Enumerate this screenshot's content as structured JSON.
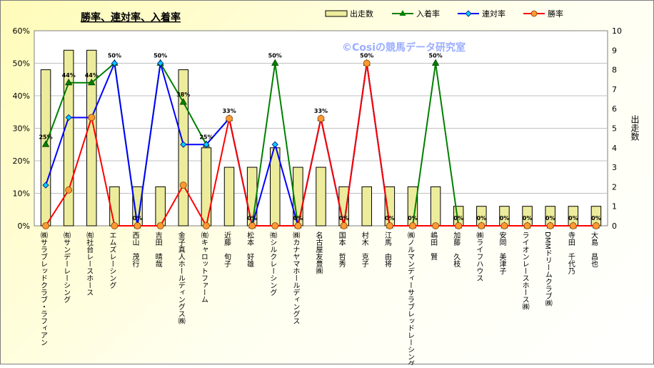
{
  "chart_data": {
    "type": "bar",
    "title": "勝率、連対率、入着率",
    "watermark": "©Cosiの競馬データ研究室",
    "ylabel_right": "出走数",
    "y_left_ticks": [
      "0%",
      "10%",
      "20%",
      "30%",
      "40%",
      "50%",
      "60%"
    ],
    "y_left_range": [
      0,
      60
    ],
    "y_right_ticks": [
      "0",
      "1",
      "2",
      "3",
      "4",
      "5",
      "6",
      "7",
      "8",
      "9",
      "10"
    ],
    "y_right_range": [
      0,
      10
    ],
    "legend_placement": "top",
    "categories": [
      "㈱サラブレッドクラブ・ラフィアン",
      "㈲サンデーレーシング",
      "㈲社台レースホース",
      "エムズレーシング",
      "西山　茂行",
      "吉田　晴哉",
      "金子真人ホールディングス㈱",
      "㈲キャロットファーム",
      "近藤　旬子",
      "松本　好雄",
      "㈲シルクレーシング",
      "㈱カナヤマホールディングス",
      "名古屋友豊㈱",
      "国本　哲秀",
      "村木　克子",
      "江馬　由将",
      "㈱ノルマンディーサラブレッドレーシング",
      "嶋田　賢",
      "加藤　久枝",
      "㈱ライフハウス",
      "安岡　美津子",
      "ライオンレースホース㈱",
      "DMMドリームクラブ㈱",
      "寺田　千代乃",
      "大島　昌也"
    ],
    "series": [
      {
        "name": "出走数",
        "type": "bar",
        "axis": "right",
        "color": "#ecec9c",
        "values": [
          8,
          9,
          9,
          2,
          2,
          2,
          8,
          4,
          3,
          3,
          4,
          3,
          3,
          2,
          2,
          2,
          2,
          2,
          1,
          1,
          1,
          1,
          1,
          1,
          1
        ]
      },
      {
        "name": "入着率",
        "type": "line",
        "axis": "left",
        "color": "#008000",
        "values": [
          25,
          44,
          44,
          50,
          0,
          50,
          38,
          25,
          33,
          0,
          50,
          0,
          33,
          0,
          50,
          0,
          0,
          50,
          0,
          0,
          0,
          0,
          0,
          0,
          0
        ]
      },
      {
        "name": "連対率",
        "type": "line",
        "axis": "left",
        "color": "#0000ff",
        "values": [
          12.5,
          33.3,
          33.3,
          50,
          0,
          50,
          25,
          25,
          33,
          0,
          25,
          0,
          33,
          0,
          50,
          0,
          0,
          0,
          0,
          0,
          0,
          0,
          0,
          0,
          0
        ]
      },
      {
        "name": "勝率",
        "type": "line",
        "axis": "left",
        "color": "#ff0000",
        "values": [
          0,
          11,
          33.3,
          0,
          0,
          0,
          12.5,
          0,
          33,
          0,
          0,
          0,
          33,
          0,
          50,
          0,
          0,
          0,
          0,
          0,
          0,
          0,
          0,
          0,
          0
        ]
      }
    ],
    "data_labels": [
      "25%",
      "44%",
      "44%",
      "50%",
      "0%",
      "50%",
      "38%",
      "25%",
      "33%",
      "0%",
      "50%",
      "0%",
      "33%",
      "0%",
      "50%",
      "0%",
      "0%",
      "50%",
      "0%",
      "0%",
      "0%",
      "0%",
      "0%",
      "0%",
      "0%"
    ]
  }
}
